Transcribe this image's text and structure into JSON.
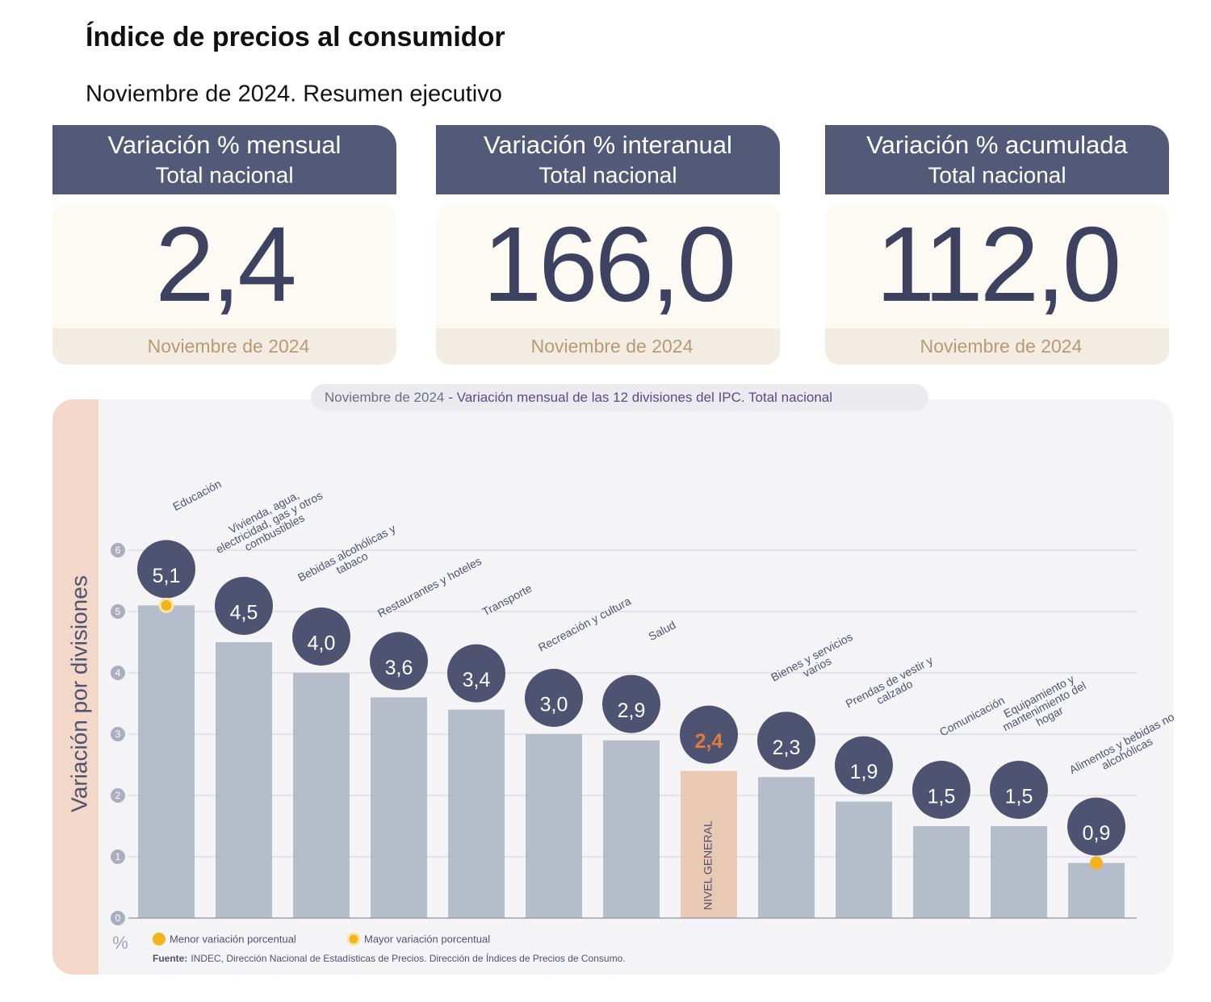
{
  "header": {
    "title": "Índice de precios al consumidor",
    "subtitle": "Noviembre de 2024. Resumen ejecutivo"
  },
  "cards": [
    {
      "title": "Variación % mensual",
      "subtitle": "Total nacional",
      "value": "2,4",
      "date": "Noviembre de 2024"
    },
    {
      "title": "Variación % interanual",
      "subtitle": "Total nacional",
      "value": "166,0",
      "date": "Noviembre de 2024"
    },
    {
      "title": "Variación % acumulada",
      "subtitle": "Total nacional",
      "value": "112,0",
      "date": "Noviembre de 2024"
    }
  ],
  "chart_data": {
    "type": "bar",
    "subtitle": "Noviembre de 2024",
    "title": "- Variación mensual de las 12 divisiones del IPC. Total nacional",
    "y_label": "Variación por divisiones",
    "y_unit": "%",
    "categories": [
      "Educación",
      "Vivienda, agua, electricidad, gas y otros combustibles",
      "Bebidas alcohólicas y tabaco",
      "Restaurantes y hoteles",
      "Transporte",
      "Recreación y cultura",
      "Salud",
      "NIVEL GENERAL",
      "Bienes y servicios varios",
      "Prendas de vestir y calzado",
      "Comunicación",
      "Equipamiento y mantenimiento del hogar",
      "Alimentos y bebidas no alcohólicas"
    ],
    "values": [
      5.1,
      4.5,
      4.0,
      3.6,
      3.4,
      3.0,
      2.9,
      2.4,
      2.3,
      1.9,
      1.5,
      1.5,
      0.9
    ],
    "value_labels": [
      "5,1",
      "4,5",
      "4,0",
      "3,6",
      "3,4",
      "3,0",
      "2,9",
      "2,4",
      "2,3",
      "1,9",
      "1,5",
      "1,5",
      "0,9"
    ],
    "colors": [
      "#b5bdcb",
      "#b5bdcb",
      "#b5bdcb",
      "#b5bdcb",
      "#b5bdcb",
      "#b5bdcb",
      "#b5bdcb",
      "#e9c9b3",
      "#b5bdcb",
      "#b5bdcb",
      "#b5bdcb",
      "#b5bdcb",
      "#b5bdcb"
    ],
    "label_colors": [
      "#ffffff",
      "#ffffff",
      "#ffffff",
      "#ffffff",
      "#ffffff",
      "#ffffff",
      "#ffffff",
      "#e07b39",
      "#ffffff",
      "#ffffff",
      "#ffffff",
      "#ffffff",
      "#ffffff"
    ],
    "ylim": [
      0,
      6
    ],
    "yticks": [
      0,
      1,
      2,
      3,
      4,
      5,
      6
    ],
    "grid": true,
    "legend": [
      {
        "label": "Menor variación porcentual"
      },
      {
        "label": "Mayor variación porcentual"
      }
    ],
    "source": {
      "label": "Fuente:",
      "text": "INDEC, Dirección Nacional de Estadísticas de Precios. Dirección de Índices de Precios de Consumo."
    }
  }
}
